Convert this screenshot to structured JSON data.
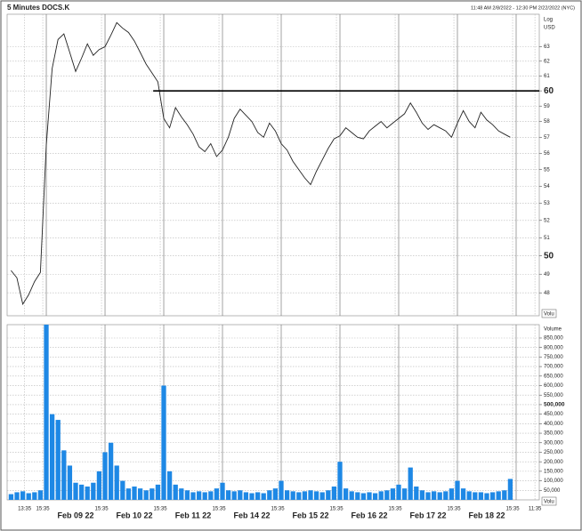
{
  "chart_data": [
    {
      "type": "line",
      "title": "5 Minutes DOCS.K",
      "subtitle": "11:48 AM 2/8/2022 - 12:30 PM 2/22/2022 (NYC)",
      "axis_label_top": "Log",
      "axis_label": "USD",
      "tag": "Volu",
      "log_scale": true,
      "grid": true,
      "x": [
        -0.6,
        -0.5,
        -0.4,
        -0.3,
        -0.2,
        -0.1,
        0.0,
        0.1,
        0.2,
        0.3,
        0.4,
        0.5,
        0.6,
        0.7,
        0.8,
        0.9,
        1.0,
        1.1,
        1.2,
        1.3,
        1.4,
        1.5,
        1.6,
        1.7,
        1.8,
        1.9,
        2.0,
        2.1,
        2.2,
        2.3,
        2.4,
        2.5,
        2.6,
        2.7,
        2.8,
        2.9,
        3.0,
        3.1,
        3.2,
        3.3,
        3.4,
        3.5,
        3.6,
        3.7,
        3.8,
        3.9,
        4.0,
        4.1,
        4.2,
        4.3,
        4.4,
        4.5,
        4.6,
        4.7,
        4.8,
        4.9,
        5.0,
        5.1,
        5.2,
        5.3,
        5.4,
        5.5,
        5.6,
        5.7,
        5.8,
        5.9,
        6.0,
        6.1,
        6.2,
        6.3,
        6.4,
        6.5,
        6.6,
        6.7,
        6.8,
        6.9,
        7.0,
        7.1,
        7.2,
        7.3,
        7.4,
        7.5,
        7.6,
        7.7,
        7.8,
        7.9
      ],
      "series": [
        {
          "name": "DOCS.K",
          "color": "#222222",
          "values": [
            49.2,
            48.8,
            47.4,
            47.9,
            48.6,
            49.1,
            56.5,
            61.5,
            63.5,
            63.9,
            62.6,
            61.3,
            62.2,
            63.2,
            62.4,
            62.8,
            63.0,
            63.8,
            64.7,
            64.3,
            64.0,
            63.4,
            62.6,
            61.8,
            61.2,
            60.6,
            58.2,
            57.6,
            58.9,
            58.3,
            57.8,
            57.2,
            56.4,
            56.1,
            56.6,
            55.8,
            56.2,
            57.0,
            58.2,
            58.8,
            58.4,
            58.0,
            57.3,
            57.0,
            57.9,
            57.4,
            56.6,
            56.2,
            55.5,
            55.0,
            54.5,
            54.1,
            54.9,
            55.6,
            56.3,
            56.9,
            57.1,
            57.6,
            57.3,
            57.0,
            56.9,
            57.4,
            57.7,
            58.0,
            57.6,
            57.9,
            58.2,
            58.5,
            59.2,
            58.6,
            57.9,
            57.5,
            57.8,
            57.6,
            57.4,
            57.0,
            57.9,
            58.7,
            58.0,
            57.6,
            58.6,
            58.1,
            57.8,
            57.4,
            57.2,
            57.0
          ]
        }
      ],
      "hline": {
        "value": 60,
        "x_start": 1.82,
        "color": "#000000"
      },
      "xlim": [
        -0.667,
        8.394
      ],
      "ylim": [
        46.8,
        65.3
      ],
      "yticks": [
        63,
        62,
        61,
        59,
        58,
        57,
        56,
        55,
        54,
        53,
        52,
        51,
        49,
        48
      ],
      "major_yticks": [
        60,
        50
      ]
    },
    {
      "type": "bar",
      "axis_label": "Volume",
      "tag": "Volu",
      "grid": true,
      "x": [
        -0.6,
        -0.5,
        -0.4,
        -0.3,
        -0.2,
        -0.1,
        0.0,
        0.1,
        0.2,
        0.3,
        0.4,
        0.5,
        0.6,
        0.7,
        0.8,
        0.9,
        1.0,
        1.1,
        1.2,
        1.3,
        1.4,
        1.5,
        1.6,
        1.7,
        1.8,
        1.9,
        2.0,
        2.1,
        2.2,
        2.3,
        2.4,
        2.5,
        2.6,
        2.7,
        2.8,
        2.9,
        3.0,
        3.1,
        3.2,
        3.3,
        3.4,
        3.5,
        3.6,
        3.7,
        3.8,
        3.9,
        4.0,
        4.1,
        4.2,
        4.3,
        4.4,
        4.5,
        4.6,
        4.7,
        4.8,
        4.9,
        5.0,
        5.1,
        5.2,
        5.3,
        5.4,
        5.5,
        5.6,
        5.7,
        5.8,
        5.9,
        6.0,
        6.1,
        6.2,
        6.3,
        6.4,
        6.5,
        6.6,
        6.7,
        6.8,
        6.9,
        7.0,
        7.1,
        7.2,
        7.3,
        7.4,
        7.5,
        7.6,
        7.7,
        7.8,
        7.9
      ],
      "series": [
        {
          "name": "Volume",
          "color": "#1e88e5",
          "values": [
            30000,
            40000,
            45000,
            35000,
            40000,
            50000,
            920000,
            450000,
            420000,
            260000,
            180000,
            90000,
            80000,
            70000,
            90000,
            150000,
            250000,
            300000,
            180000,
            100000,
            60000,
            70000,
            60000,
            50000,
            60000,
            80000,
            600000,
            150000,
            80000,
            60000,
            50000,
            40000,
            45000,
            40000,
            45000,
            60000,
            90000,
            50000,
            45000,
            50000,
            40000,
            35000,
            40000,
            35000,
            50000,
            60000,
            100000,
            50000,
            45000,
            40000,
            45000,
            50000,
            45000,
            40000,
            50000,
            70000,
            200000,
            60000,
            45000,
            40000,
            35000,
            40000,
            35000,
            45000,
            50000,
            60000,
            80000,
            60000,
            170000,
            70000,
            50000,
            40000,
            45000,
            40000,
            45000,
            60000,
            100000,
            60000,
            45000,
            40000,
            40000,
            35000,
            40000,
            45000,
            50000,
            110000
          ]
        }
      ],
      "xlim": [
        -0.667,
        8.394
      ],
      "ylim": [
        0,
        920000
      ],
      "yticks": [
        {
          "value": 50000,
          "label": "50,000"
        },
        {
          "value": 100000,
          "label": "100,000"
        },
        {
          "value": 150000,
          "label": "150,000"
        },
        {
          "value": 200000,
          "label": "200,000"
        },
        {
          "value": 250000,
          "label": "250,000"
        },
        {
          "value": 300000,
          "label": "300,000"
        },
        {
          "value": 350000,
          "label": "350,000"
        },
        {
          "value": 400000,
          "label": "400,000"
        },
        {
          "value": 450000,
          "label": "450,000"
        },
        {
          "value": 550000,
          "label": "550,000"
        },
        {
          "value": 600000,
          "label": "600,000"
        },
        {
          "value": 650000,
          "label": "650,000"
        },
        {
          "value": 700000,
          "label": "700,000"
        },
        {
          "value": 750000,
          "label": "750,000"
        },
        {
          "value": 800000,
          "label": "800,000"
        },
        {
          "value": 850000,
          "label": "850,000"
        }
      ],
      "major_yticks": [
        {
          "value": 500000,
          "label": "500,000"
        }
      ],
      "xticks": [
        {
          "value": -0.37,
          "label": "13:35"
        },
        {
          "value": -0.06,
          "label": "15:35"
        },
        {
          "value": 0.94,
          "label": "15:35"
        },
        {
          "value": 1.94,
          "label": "15:35"
        },
        {
          "value": 2.94,
          "label": "15:35"
        },
        {
          "value": 3.94,
          "label": "15:35"
        },
        {
          "value": 4.94,
          "label": "15:35"
        },
        {
          "value": 5.94,
          "label": "15:35"
        },
        {
          "value": 6.94,
          "label": "15:35"
        },
        {
          "value": 7.94,
          "label": "15:35"
        },
        {
          "value": 8.32,
          "label": "11:35"
        }
      ],
      "day_separators": [
        0,
        1,
        2,
        3,
        4,
        5,
        6,
        7,
        8
      ],
      "date_labels": [
        {
          "value": 0.5,
          "label": "Feb 09 22"
        },
        {
          "value": 1.5,
          "label": "Feb 10 22"
        },
        {
          "value": 2.5,
          "label": "Feb 11 22"
        },
        {
          "value": 3.5,
          "label": "Feb 14 22"
        },
        {
          "value": 4.5,
          "label": "Feb 15 22"
        },
        {
          "value": 5.5,
          "label": "Feb 16 22"
        },
        {
          "value": 6.5,
          "label": "Feb 17 22"
        },
        {
          "value": 7.5,
          "label": "Feb 18 22"
        }
      ]
    }
  ]
}
